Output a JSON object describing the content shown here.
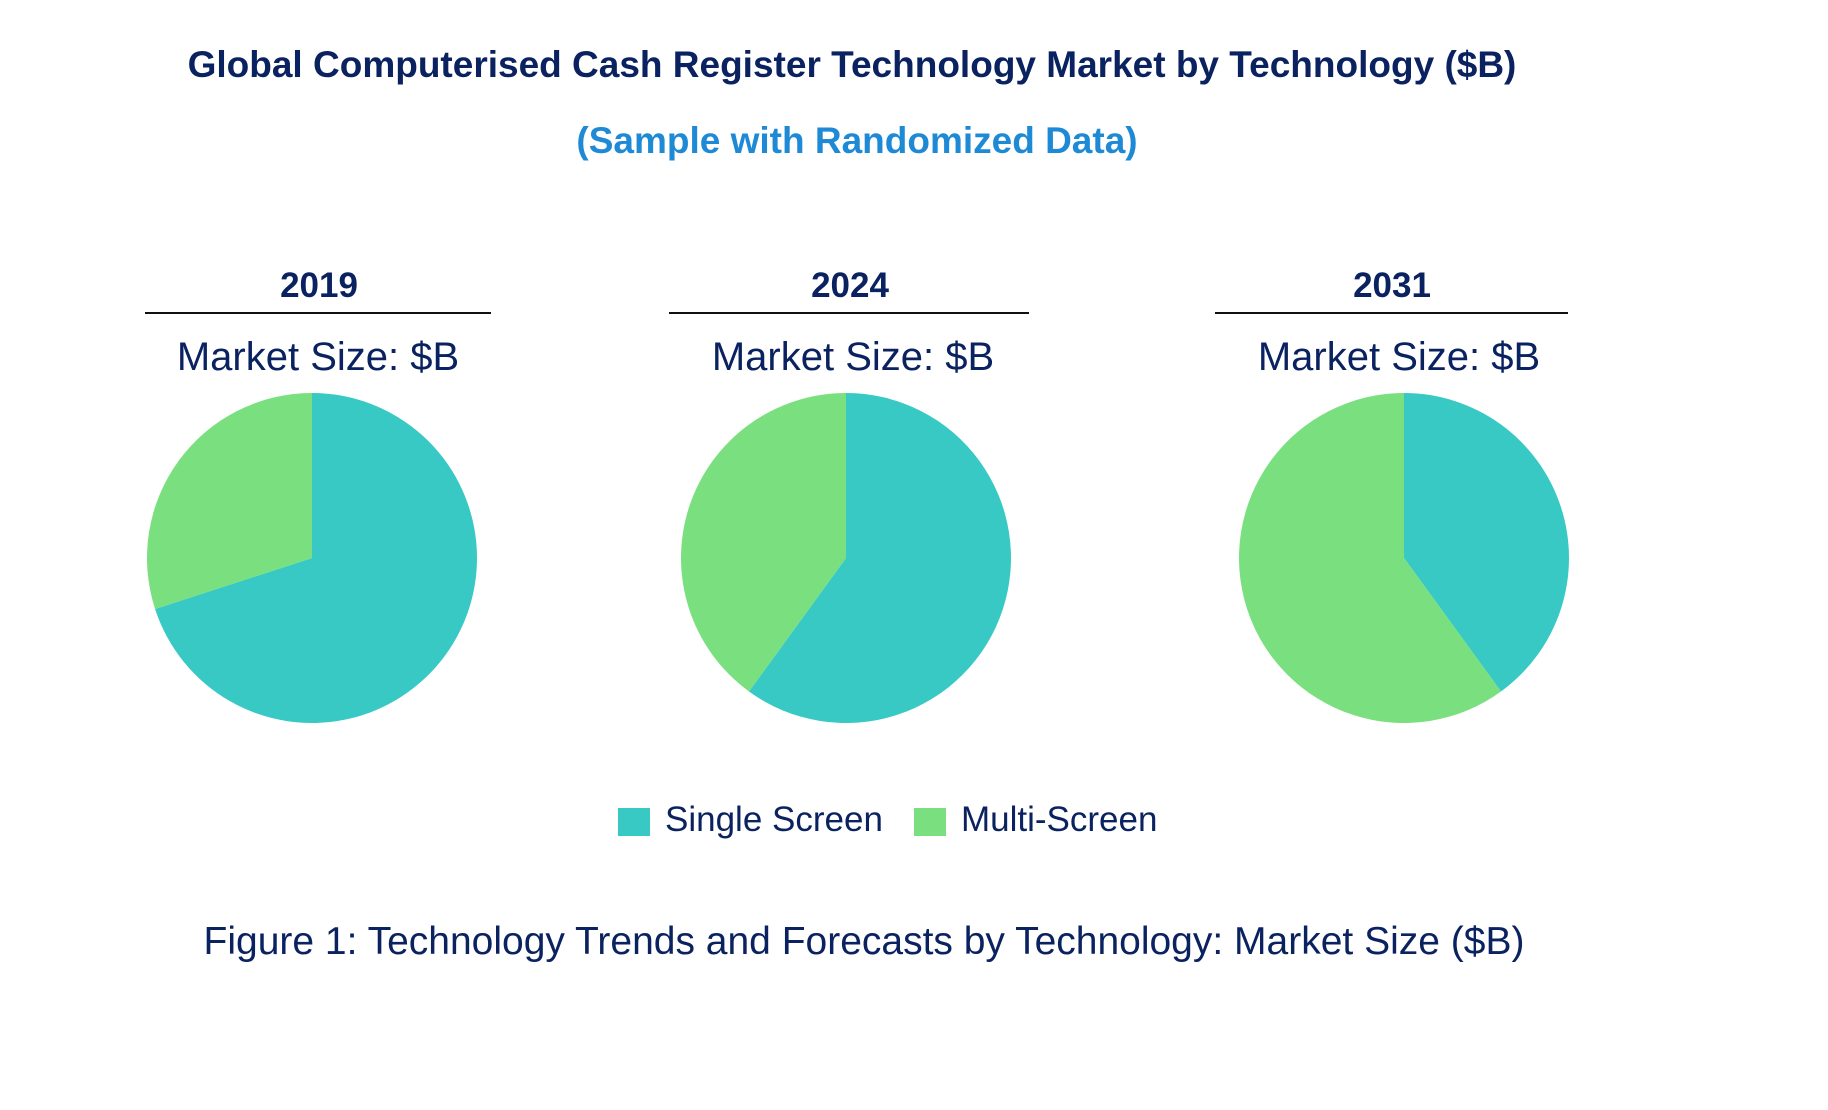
{
  "title": "Global Computerised Cash Register Technology Market by Technology ($B)",
  "subtitle": "(Sample with Randomized Data)",
  "caption": "Figure 1: Technology Trends and Forecasts by Technology: Market Size ($B)",
  "colors": {
    "title": "#0b2260",
    "subtitle": "#1e8ad6",
    "single_screen": "#38c9c4",
    "multi_screen": "#7ae07f"
  },
  "chart_data": {
    "type": "pie",
    "legend_placement": "bottom",
    "series_names": [
      "Single Screen",
      "Multi-Screen"
    ],
    "pies": [
      {
        "year": "2019",
        "label": "Market Size: $B",
        "values": [
          70,
          30
        ]
      },
      {
        "year": "2024",
        "label": "Market Size: $B",
        "values": [
          60,
          40
        ]
      },
      {
        "year": "2031",
        "label": "Market Size: $B",
        "values": [
          40,
          60
        ]
      }
    ]
  }
}
